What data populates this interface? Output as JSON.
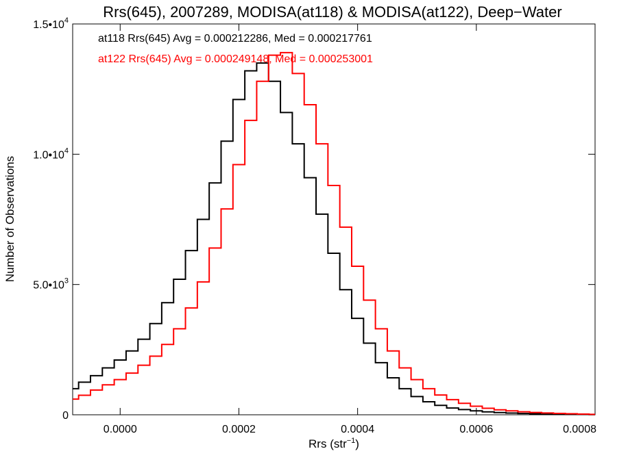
{
  "chart_data": {
    "type": "line",
    "title": "Rrs(645), 2007289, MODISA(at118) & MODISA(at122), Deep−Water",
    "xlabel": "Rrs (str",
    "xlabel_sup": "−1",
    "xlabel_close": ")",
    "ylabel": "Number of Observations",
    "xlim": [
      -8e-05,
      0.0008
    ],
    "ylim": [
      0,
      15000
    ],
    "x_ticks": [
      {
        "value": 0.0,
        "label": "0.0000"
      },
      {
        "value": 0.0002,
        "label": "0.0002"
      },
      {
        "value": 0.0004,
        "label": "0.0004"
      },
      {
        "value": 0.0006,
        "label": "0.0006"
      },
      {
        "value": 0.0008,
        "label": "0.0008"
      }
    ],
    "y_ticks": [
      {
        "value": 0,
        "base": "0",
        "exp": ""
      },
      {
        "value": 5000,
        "base": "5.0•10",
        "exp": "3"
      },
      {
        "value": 10000,
        "base": "1.0•10",
        "exp": "4"
      },
      {
        "value": 15000,
        "base": "1.5•10",
        "exp": "4"
      }
    ],
    "grid": false,
    "legend_placement": "top-left",
    "series": [
      {
        "name": "at118",
        "color": "#000000",
        "stat_text": "at118 Rrs(645) Avg = 0.000212286, Med = 0.000217761",
        "x": [
          -8e-05,
          -6e-05,
          -4e-05,
          -2e-05,
          0.0,
          2e-05,
          4e-05,
          6e-05,
          8e-05,
          0.0001,
          0.00012,
          0.00014,
          0.00016,
          0.00018,
          0.0002,
          0.00022,
          0.00024,
          0.00026,
          0.00028,
          0.0003,
          0.00032,
          0.00034,
          0.00036,
          0.00038,
          0.0004,
          0.00042,
          0.00044,
          0.00046,
          0.00048,
          0.0005,
          0.00052,
          0.00054,
          0.00056,
          0.00058,
          0.0006,
          0.00062,
          0.00064,
          0.00066,
          0.00068,
          0.0007,
          0.00072,
          0.00074,
          0.00076,
          0.00078,
          0.0008
        ],
        "values": [
          1000,
          1250,
          1500,
          1800,
          2100,
          2450,
          2900,
          3500,
          4300,
          5200,
          6300,
          7500,
          8900,
          10500,
          12100,
          13200,
          13500,
          12800,
          11600,
          10400,
          9100,
          7700,
          6200,
          4800,
          3700,
          2750,
          2000,
          1420,
          1000,
          700,
          500,
          360,
          260,
          200,
          150,
          110,
          85,
          65,
          50,
          40,
          30,
          22,
          16,
          12,
          8
        ]
      },
      {
        "name": "at122",
        "color": "#ff0000",
        "stat_text": "at122 Rrs(645) Avg = 0.000249148, Med = 0.000253001",
        "x": [
          -8e-05,
          -6e-05,
          -4e-05,
          -2e-05,
          0.0,
          2e-05,
          4e-05,
          6e-05,
          8e-05,
          0.0001,
          0.00012,
          0.00014,
          0.00016,
          0.00018,
          0.0002,
          0.00022,
          0.00024,
          0.00026,
          0.00028,
          0.0003,
          0.00032,
          0.00034,
          0.00036,
          0.00038,
          0.0004,
          0.00042,
          0.00044,
          0.00046,
          0.00048,
          0.0005,
          0.00052,
          0.00054,
          0.00056,
          0.00058,
          0.0006,
          0.00062,
          0.00064,
          0.00066,
          0.00068,
          0.0007,
          0.00072,
          0.00074,
          0.00076,
          0.00078,
          0.0008
        ],
        "values": [
          600,
          750,
          950,
          1150,
          1350,
          1600,
          1900,
          2250,
          2700,
          3300,
          4100,
          5100,
          6400,
          7900,
          9600,
          11300,
          12800,
          13800,
          13900,
          13100,
          11900,
          10400,
          8800,
          7200,
          5700,
          4400,
          3300,
          2450,
          1800,
          1350,
          1000,
          760,
          580,
          440,
          330,
          250,
          190,
          150,
          115,
          90,
          70,
          52,
          38,
          26,
          15
        ]
      }
    ]
  }
}
